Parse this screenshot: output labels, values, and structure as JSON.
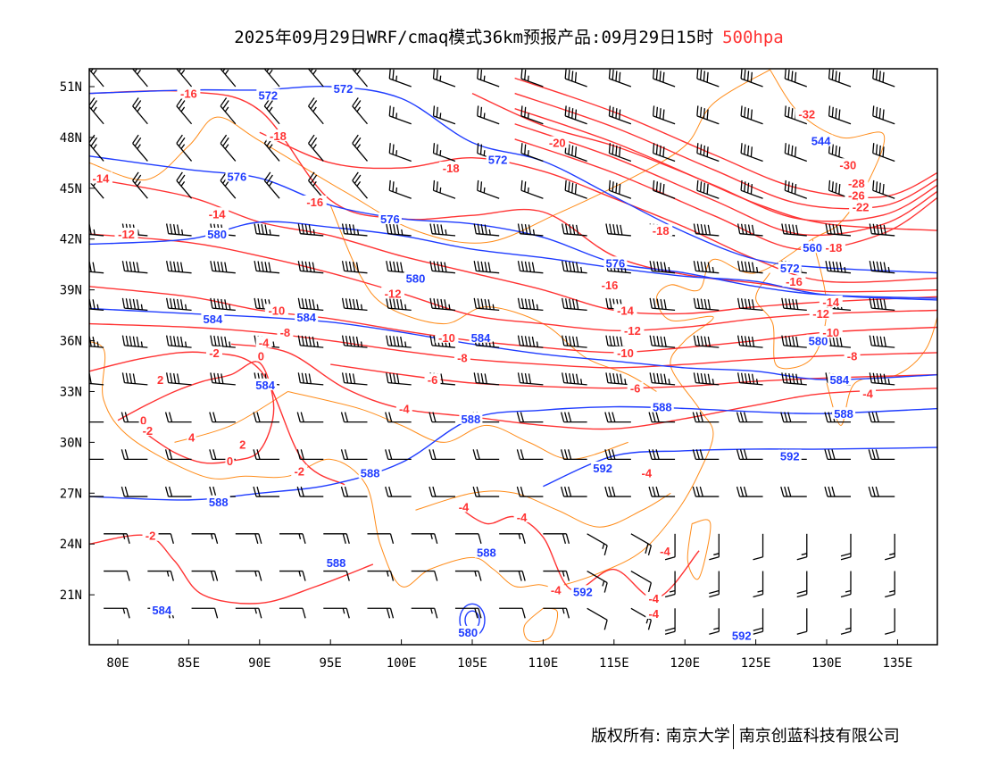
{
  "title": {
    "text": "2025年09月29日WRF/cmaq模式36km预报产品:09月29日15时",
    "level": "500hpa"
  },
  "footer": {
    "left": "版权所有: 南京大学",
    "right": "南京创蓝科技有限公司"
  },
  "colors": {
    "height": "#1f3cff",
    "temperature": "#ff3333",
    "boundary": "#ff8c1a",
    "wind": "#000000"
  },
  "map": {
    "lon_range": [
      78,
      138
    ],
    "lat_range": [
      18,
      52
    ],
    "lon_ticks": [
      "80E",
      "85E",
      "90E",
      "95E",
      "100E",
      "105E",
      "110E",
      "115E",
      "120E",
      "125E",
      "130E",
      "135E"
    ],
    "lat_ticks": [
      "51N",
      "48N",
      "45N",
      "42N",
      "39N",
      "36N",
      "33N",
      "30N",
      "27N",
      "24N",
      "21N"
    ]
  },
  "height_contours": [
    {
      "value": 572,
      "lons": [
        78,
        85,
        90,
        95,
        100,
        105,
        110,
        115,
        120,
        125,
        130,
        138
      ],
      "lats": [
        50.6,
        50.8,
        50.8,
        51,
        50.3,
        47.7,
        46.6,
        44.5,
        42.4,
        40.8,
        40.3,
        40.0
      ]
    },
    {
      "value": 576,
      "lons": [
        78,
        85,
        90,
        95,
        100,
        105,
        110,
        115,
        120,
        125,
        130,
        138
      ],
      "lats": [
        46.9,
        46.1,
        45.6,
        44.0,
        43.2,
        42.9,
        42.1,
        40.6,
        40.0,
        39.2,
        38.7,
        38.5
      ]
    },
    {
      "value": 580,
      "lons": [
        78,
        85,
        90,
        95,
        100,
        105,
        110,
        115,
        120,
        125,
        130,
        138
      ],
      "lats": [
        41.7,
        42.0,
        43.0,
        42.7,
        42.2,
        41.4,
        40.9,
        40.3,
        39.8,
        39.5,
        38.7,
        38.4
      ]
    },
    {
      "value": 584,
      "lons": [
        78,
        85,
        90,
        95,
        100,
        105,
        110,
        115,
        120,
        125,
        130,
        138
      ],
      "lats": [
        37.9,
        37.6,
        37.4,
        37.1,
        36.5,
        35.8,
        35.2,
        34.8,
        34.4,
        34.2,
        33.7,
        34.0
      ]
    },
    {
      "value": 588,
      "lons": [
        78,
        85,
        90,
        95,
        100,
        105,
        110,
        115,
        120,
        125,
        130,
        138
      ],
      "lats": [
        26.8,
        26.6,
        27.0,
        27.5,
        28.8,
        31.4,
        31.9,
        32.1,
        32.0,
        31.8,
        31.7,
        32.0
      ]
    },
    {
      "value": 592,
      "lons": [
        110,
        115,
        120,
        125,
        130,
        138
      ],
      "lats": [
        27.4,
        29.2,
        29.5,
        29.6,
        29.6,
        29.7
      ]
    }
  ],
  "temperature_contours": [
    {
      "value": -20,
      "lons": [
        105,
        110,
        115,
        120,
        125,
        130,
        138
      ],
      "lats": [
        50.6,
        48.7,
        47.5,
        45.9,
        44.1,
        42.9,
        42.5
      ]
    },
    {
      "value": -18,
      "lons": [
        90,
        95,
        100,
        105,
        110,
        115,
        120,
        125,
        130,
        138
      ],
      "lats": [
        48.3,
        46.5,
        46.2,
        46.8,
        46.0,
        44.4,
        42.7,
        40.8,
        39.5,
        39.7
      ]
    },
    {
      "value": -16,
      "lons": [
        78,
        85,
        90,
        95,
        100,
        105,
        110,
        115,
        120,
        125,
        130,
        138
      ],
      "lats": [
        50.6,
        50.7,
        49.6,
        44.3,
        43.2,
        43.4,
        43.6,
        41.0,
        39.9,
        39.4,
        38.9,
        39.0
      ]
    },
    {
      "value": -14,
      "lons": [
        78,
        85,
        90,
        95,
        100,
        105,
        110,
        115,
        120,
        125,
        130,
        138
      ],
      "lats": [
        45.6,
        44.5,
        43.0,
        42.2,
        41.0,
        40.0,
        39.0,
        37.8,
        37.6,
        38.0,
        38.3,
        38.6
      ]
    },
    {
      "value": -12,
      "lons": [
        78,
        85,
        90,
        95,
        100,
        105,
        110,
        115,
        120,
        125,
        130,
        138
      ],
      "lats": [
        42.3,
        41.8,
        41.0,
        40.0,
        38.8,
        37.5,
        37.0,
        36.6,
        36.8,
        37.3,
        37.6,
        37.8
      ]
    },
    {
      "value": -10,
      "lons": [
        78,
        85,
        90,
        95,
        100,
        105,
        110,
        115,
        120,
        125,
        130,
        138
      ],
      "lats": [
        39.2,
        38.6,
        37.8,
        37.3,
        36.6,
        36.0,
        35.6,
        35.3,
        35.6,
        36.0,
        36.5,
        36.8
      ]
    },
    {
      "value": -8,
      "lons": [
        78,
        85,
        90,
        95,
        100,
        105,
        110,
        115,
        120,
        125,
        130,
        138
      ],
      "lats": [
        37.0,
        36.8,
        36.5,
        36.0,
        35.4,
        34.9,
        34.6,
        34.4,
        34.6,
        34.9,
        35.1,
        35.3
      ]
    },
    {
      "value": -6,
      "lons": [
        95,
        100,
        105,
        110,
        115,
        120,
        125,
        130,
        138
      ],
      "lats": [
        34.6,
        34.0,
        33.5,
        33.3,
        33.2,
        33.3,
        33.6,
        33.8,
        34.0
      ]
    },
    {
      "value": -4,
      "lons": [
        88,
        92,
        96,
        100,
        105,
        110,
        115,
        120,
        125,
        130,
        138
      ],
      "lats": [
        35.8,
        35.3,
        33.2,
        32.0,
        31.5,
        31.0,
        30.8,
        31.4,
        32.2,
        32.9,
        33.2
      ]
    },
    {
      "value": -2,
      "lons": [
        78,
        82,
        86,
        90,
        93,
        96
      ],
      "lats": [
        34.2,
        35.0,
        35.3,
        34.3,
        29.0,
        27.5
      ]
    },
    {
      "value": 0,
      "lons": [
        80,
        82,
        84,
        86,
        88,
        90,
        91,
        90,
        88,
        86,
        84,
        82
      ],
      "lats": [
        31.3,
        32.2,
        33.0,
        33.6,
        34.0,
        34.7,
        32.0,
        29.5,
        28.9,
        28.8,
        29.4,
        30.5
      ]
    },
    {
      "value": -2,
      "lons": [
        78,
        82,
        84,
        86,
        90,
        94,
        98
      ],
      "lats": [
        24.0,
        24.5,
        23.0,
        21.0,
        20.5,
        21.5,
        22.8
      ]
    },
    {
      "value": -4,
      "lons": [
        104,
        106,
        108,
        110,
        112,
        115,
        118,
        121
      ],
      "lats": [
        26.2,
        25.2,
        25.6,
        24.4,
        21.3,
        22.5,
        20.8,
        23.6
      ]
    }
  ],
  "contour_labels": [
    {
      "text": "572",
      "kind": "height",
      "lon": 90.6,
      "lat": 50.5
    },
    {
      "text": "572",
      "kind": "height",
      "lon": 95.9,
      "lat": 50.9
    },
    {
      "text": "572",
      "kind": "height",
      "lon": 106.8,
      "lat": 46.7
    },
    {
      "text": "576",
      "kind": "height",
      "lon": 88.4,
      "lat": 45.7
    },
    {
      "text": "576",
      "kind": "height",
      "lon": 99.2,
      "lat": 43.2
    },
    {
      "text": "580",
      "kind": "height",
      "lon": 87.0,
      "lat": 42.3
    },
    {
      "text": "580",
      "kind": "height",
      "lon": 101.0,
      "lat": 39.7
    },
    {
      "text": "584",
      "kind": "height",
      "lon": 86.7,
      "lat": 37.3
    },
    {
      "text": "584",
      "kind": "height",
      "lon": 93.3,
      "lat": 37.4
    },
    {
      "text": "584",
      "kind": "height",
      "lon": 90.4,
      "lat": 33.4
    },
    {
      "text": "584",
      "kind": "height",
      "lon": 105.6,
      "lat": 36.2
    },
    {
      "text": "576",
      "kind": "height",
      "lon": 115.1,
      "lat": 40.6
    },
    {
      "text": "572",
      "kind": "height",
      "lon": 127.4,
      "lat": 40.3
    },
    {
      "text": "580",
      "kind": "height",
      "lon": 129.4,
      "lat": 36.0
    },
    {
      "text": "584",
      "kind": "height",
      "lon": 130.9,
      "lat": 33.7
    },
    {
      "text": "588",
      "kind": "height",
      "lon": 104.9,
      "lat": 31.4
    },
    {
      "text": "588",
      "kind": "height",
      "lon": 118.4,
      "lat": 32.1
    },
    {
      "text": "588",
      "kind": "height",
      "lon": 131.2,
      "lat": 31.7
    },
    {
      "text": "588",
      "kind": "height",
      "lon": 97.8,
      "lat": 28.2
    },
    {
      "text": "588",
      "kind": "height",
      "lon": 87.1,
      "lat": 26.5
    },
    {
      "text": "588",
      "kind": "height",
      "lon": 95.4,
      "lat": 22.9
    },
    {
      "text": "588",
      "kind": "height",
      "lon": 106.0,
      "lat": 23.5
    },
    {
      "text": "592",
      "kind": "height",
      "lon": 114.2,
      "lat": 28.5
    },
    {
      "text": "592",
      "kind": "height",
      "lon": 127.4,
      "lat": 29.2
    },
    {
      "text": "592",
      "kind": "height",
      "lon": 112.8,
      "lat": 21.2
    },
    {
      "text": "592",
      "kind": "height",
      "lon": 124.0,
      "lat": 18.6
    },
    {
      "text": "580",
      "kind": "height",
      "lon": 104.7,
      "lat": 18.8
    },
    {
      "text": "584",
      "kind": "height",
      "lon": 83.1,
      "lat": 20.1
    },
    {
      "text": "544",
      "kind": "height",
      "lon": 129.6,
      "lat": 47.8
    },
    {
      "text": "560",
      "kind": "height",
      "lon": 129.0,
      "lat": 41.5
    },
    {
      "text": "-16",
      "kind": "temp",
      "lon": 85.0,
      "lat": 50.6
    },
    {
      "text": "-16",
      "kind": "temp",
      "lon": 93.9,
      "lat": 44.2
    },
    {
      "text": "-18",
      "kind": "temp",
      "lon": 91.3,
      "lat": 48.1
    },
    {
      "text": "-18",
      "kind": "temp",
      "lon": 103.5,
      "lat": 46.2
    },
    {
      "text": "-20",
      "kind": "temp",
      "lon": 111.0,
      "lat": 47.7
    },
    {
      "text": "-18",
      "kind": "temp",
      "lon": 118.3,
      "lat": 42.5
    },
    {
      "text": "-18",
      "kind": "temp",
      "lon": 130.5,
      "lat": 41.5
    },
    {
      "text": "-16",
      "kind": "temp",
      "lon": 127.7,
      "lat": 39.5
    },
    {
      "text": "-32",
      "kind": "temp",
      "lon": 128.6,
      "lat": 49.4
    },
    {
      "text": "-30",
      "kind": "temp",
      "lon": 131.5,
      "lat": 46.4
    },
    {
      "text": "-28",
      "kind": "temp",
      "lon": 132.1,
      "lat": 45.3
    },
    {
      "text": "-26",
      "kind": "temp",
      "lon": 132.1,
      "lat": 44.6
    },
    {
      "text": "-22",
      "kind": "temp",
      "lon": 132.4,
      "lat": 43.9
    },
    {
      "text": "-14",
      "kind": "temp",
      "lon": 78.8,
      "lat": 45.6
    },
    {
      "text": "-14",
      "kind": "temp",
      "lon": 87.0,
      "lat": 43.5
    },
    {
      "text": "-12",
      "kind": "temp",
      "lon": 80.6,
      "lat": 42.3
    },
    {
      "text": "-12",
      "kind": "temp",
      "lon": 99.4,
      "lat": 38.8
    },
    {
      "text": "-16",
      "kind": "temp",
      "lon": 114.7,
      "lat": 39.3
    },
    {
      "text": "-14",
      "kind": "temp",
      "lon": 115.8,
      "lat": 37.8
    },
    {
      "text": "-14",
      "kind": "temp",
      "lon": 130.3,
      "lat": 38.3
    },
    {
      "text": "-12",
      "kind": "temp",
      "lon": 116.3,
      "lat": 36.6
    },
    {
      "text": "-12",
      "kind": "temp",
      "lon": 129.6,
      "lat": 37.6
    },
    {
      "text": "-10",
      "kind": "temp",
      "lon": 91.2,
      "lat": 37.8
    },
    {
      "text": "-10",
      "kind": "temp",
      "lon": 103.2,
      "lat": 36.2
    },
    {
      "text": "-10",
      "kind": "temp",
      "lon": 115.8,
      "lat": 35.3
    },
    {
      "text": "-10",
      "kind": "temp",
      "lon": 130.3,
      "lat": 36.5
    },
    {
      "text": "-8",
      "kind": "temp",
      "lon": 91.8,
      "lat": 36.5
    },
    {
      "text": "-8",
      "kind": "temp",
      "lon": 104.3,
      "lat": 35.0
    },
    {
      "text": "-8",
      "kind": "temp",
      "lon": 131.8,
      "lat": 35.1
    },
    {
      "text": "-6",
      "kind": "temp",
      "lon": 102.2,
      "lat": 33.7
    },
    {
      "text": "-6",
      "kind": "temp",
      "lon": 116.5,
      "lat": 33.2
    },
    {
      "text": "-4",
      "kind": "temp",
      "lon": 90.3,
      "lat": 35.9
    },
    {
      "text": "-4",
      "kind": "temp",
      "lon": 100.2,
      "lat": 32.0
    },
    {
      "text": "-4",
      "kind": "temp",
      "lon": 132.9,
      "lat": 32.9
    },
    {
      "text": "-2",
      "kind": "temp",
      "lon": 86.8,
      "lat": 35.3
    },
    {
      "text": "0",
      "kind": "temp",
      "lon": 90.1,
      "lat": 35.1
    },
    {
      "text": "2",
      "kind": "temp",
      "lon": 83.0,
      "lat": 33.7
    },
    {
      "text": "0",
      "kind": "temp",
      "lon": 81.8,
      "lat": 31.3
    },
    {
      "text": "-2",
      "kind": "temp",
      "lon": 82.1,
      "lat": 30.7
    },
    {
      "text": "4",
      "kind": "temp",
      "lon": 85.2,
      "lat": 30.3
    },
    {
      "text": "2",
      "kind": "temp",
      "lon": 88.8,
      "lat": 29.9
    },
    {
      "text": "0",
      "kind": "temp",
      "lon": 87.9,
      "lat": 28.9
    },
    {
      "text": "-2",
      "kind": "temp",
      "lon": 92.8,
      "lat": 28.3
    },
    {
      "text": "-4",
      "kind": "temp",
      "lon": 104.4,
      "lat": 26.2
    },
    {
      "text": "-4",
      "kind": "temp",
      "lon": 108.5,
      "lat": 25.6
    },
    {
      "text": "-4",
      "kind": "temp",
      "lon": 117.3,
      "lat": 28.2
    },
    {
      "text": "-2",
      "kind": "temp",
      "lon": 82.3,
      "lat": 24.5
    },
    {
      "text": "-4",
      "kind": "temp",
      "lon": 118.6,
      "lat": 23.6
    },
    {
      "text": "-4",
      "kind": "temp",
      "lon": 110.9,
      "lat": 21.3
    },
    {
      "text": "-4",
      "kind": "temp",
      "lon": 117.8,
      "lat": 20.8
    },
    {
      "text": "-4",
      "kind": "temp",
      "lon": 117.8,
      "lat": 19.9
    }
  ]
}
